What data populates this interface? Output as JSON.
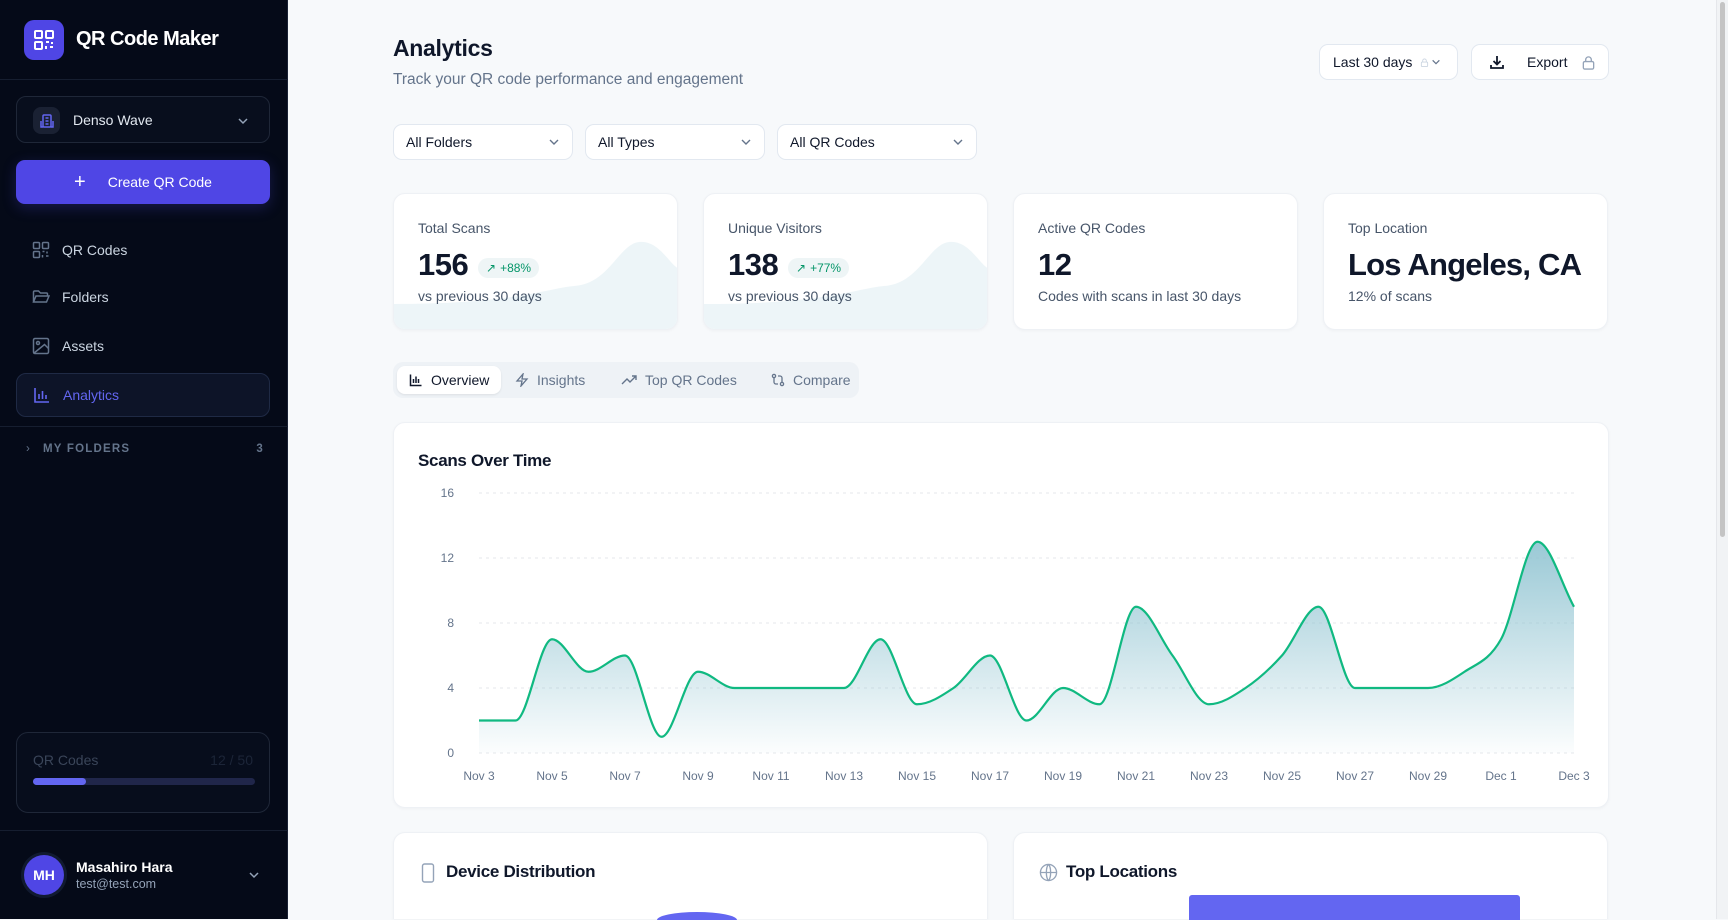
{
  "app": {
    "title": "QR Code Maker"
  },
  "sidebar": {
    "org": "Denso Wave",
    "create_label": "Create QR Code",
    "items": [
      {
        "label": "QR Codes",
        "icon": "qr-icon"
      },
      {
        "label": "Folders",
        "icon": "folder-icon"
      },
      {
        "label": "Assets",
        "icon": "image-icon"
      },
      {
        "label": "Analytics",
        "icon": "bar-chart-icon",
        "active": true
      }
    ],
    "my_folders": {
      "label": "MY FOLDERS",
      "count": "3"
    },
    "usage": {
      "label": "QR Codes",
      "value": "12 / 50",
      "fraction": 0.24
    },
    "user": {
      "initials": "MH",
      "name": "Masahiro Hara",
      "email": "test@test.com"
    }
  },
  "header": {
    "title": "Analytics",
    "subtitle": "Track your QR code performance and engagement",
    "range": "Last 30 days",
    "export": "Export"
  },
  "filters": [
    "All Folders",
    "All Types",
    "All QR Codes"
  ],
  "stats": [
    {
      "label": "Total Scans",
      "value": "156",
      "change": "+88%",
      "sub": "vs previous 30 days"
    },
    {
      "label": "Unique Visitors",
      "value": "138",
      "change": "+77%",
      "sub": "vs previous 30 days"
    },
    {
      "label": "Active QR Codes",
      "value": "12",
      "sub": "Codes with scans in last 30 days"
    },
    {
      "label": "Top Location",
      "value": "Los Angeles, CA",
      "sub": "12% of scans"
    }
  ],
  "tabs": [
    {
      "label": "Overview",
      "active": true
    },
    {
      "label": "Insights"
    },
    {
      "label": "Top QR Codes"
    },
    {
      "label": "Compare"
    }
  ],
  "chart_data": {
    "type": "area",
    "title": "Scans Over Time",
    "x": [
      "Nov 3",
      "Nov 4",
      "Nov 5",
      "Nov 6",
      "Nov 7",
      "Nov 8",
      "Nov 9",
      "Nov 10",
      "Nov 11",
      "Nov 12",
      "Nov 13",
      "Nov 14",
      "Nov 15",
      "Nov 16",
      "Nov 17",
      "Nov 18",
      "Nov 19",
      "Nov 20",
      "Nov 21",
      "Nov 22",
      "Nov 23",
      "Nov 24",
      "Nov 25",
      "Nov 26",
      "Nov 27",
      "Nov 28",
      "Nov 29",
      "Nov 30",
      "Dec 1",
      "Dec 2",
      "Dec 3"
    ],
    "values": [
      2,
      2,
      7,
      5,
      6,
      1,
      5,
      4,
      4,
      4,
      4,
      7,
      3,
      4,
      6,
      2,
      4,
      3,
      9,
      6,
      3,
      4,
      6,
      9,
      4,
      4,
      4,
      5,
      7,
      13,
      9
    ],
    "xticks": [
      "Nov 3",
      "Nov 5",
      "Nov 7",
      "Nov 9",
      "Nov 11",
      "Nov 13",
      "Nov 15",
      "Nov 17",
      "Nov 19",
      "Nov 21",
      "Nov 23",
      "Nov 25",
      "Nov 27",
      "Nov 29",
      "Dec 1",
      "Dec 3"
    ],
    "yticks": [
      0,
      4,
      8,
      12,
      16
    ],
    "ylim": [
      0,
      16
    ],
    "grid": true,
    "line_color": "#10b981",
    "fill_color": "#8fc3d1"
  },
  "panels": {
    "devices": "Device Distribution",
    "locations": "Top Locations"
  },
  "colors": {
    "accent": "#4f46e5",
    "sidebar": "#050a18",
    "positive": "#059669"
  }
}
